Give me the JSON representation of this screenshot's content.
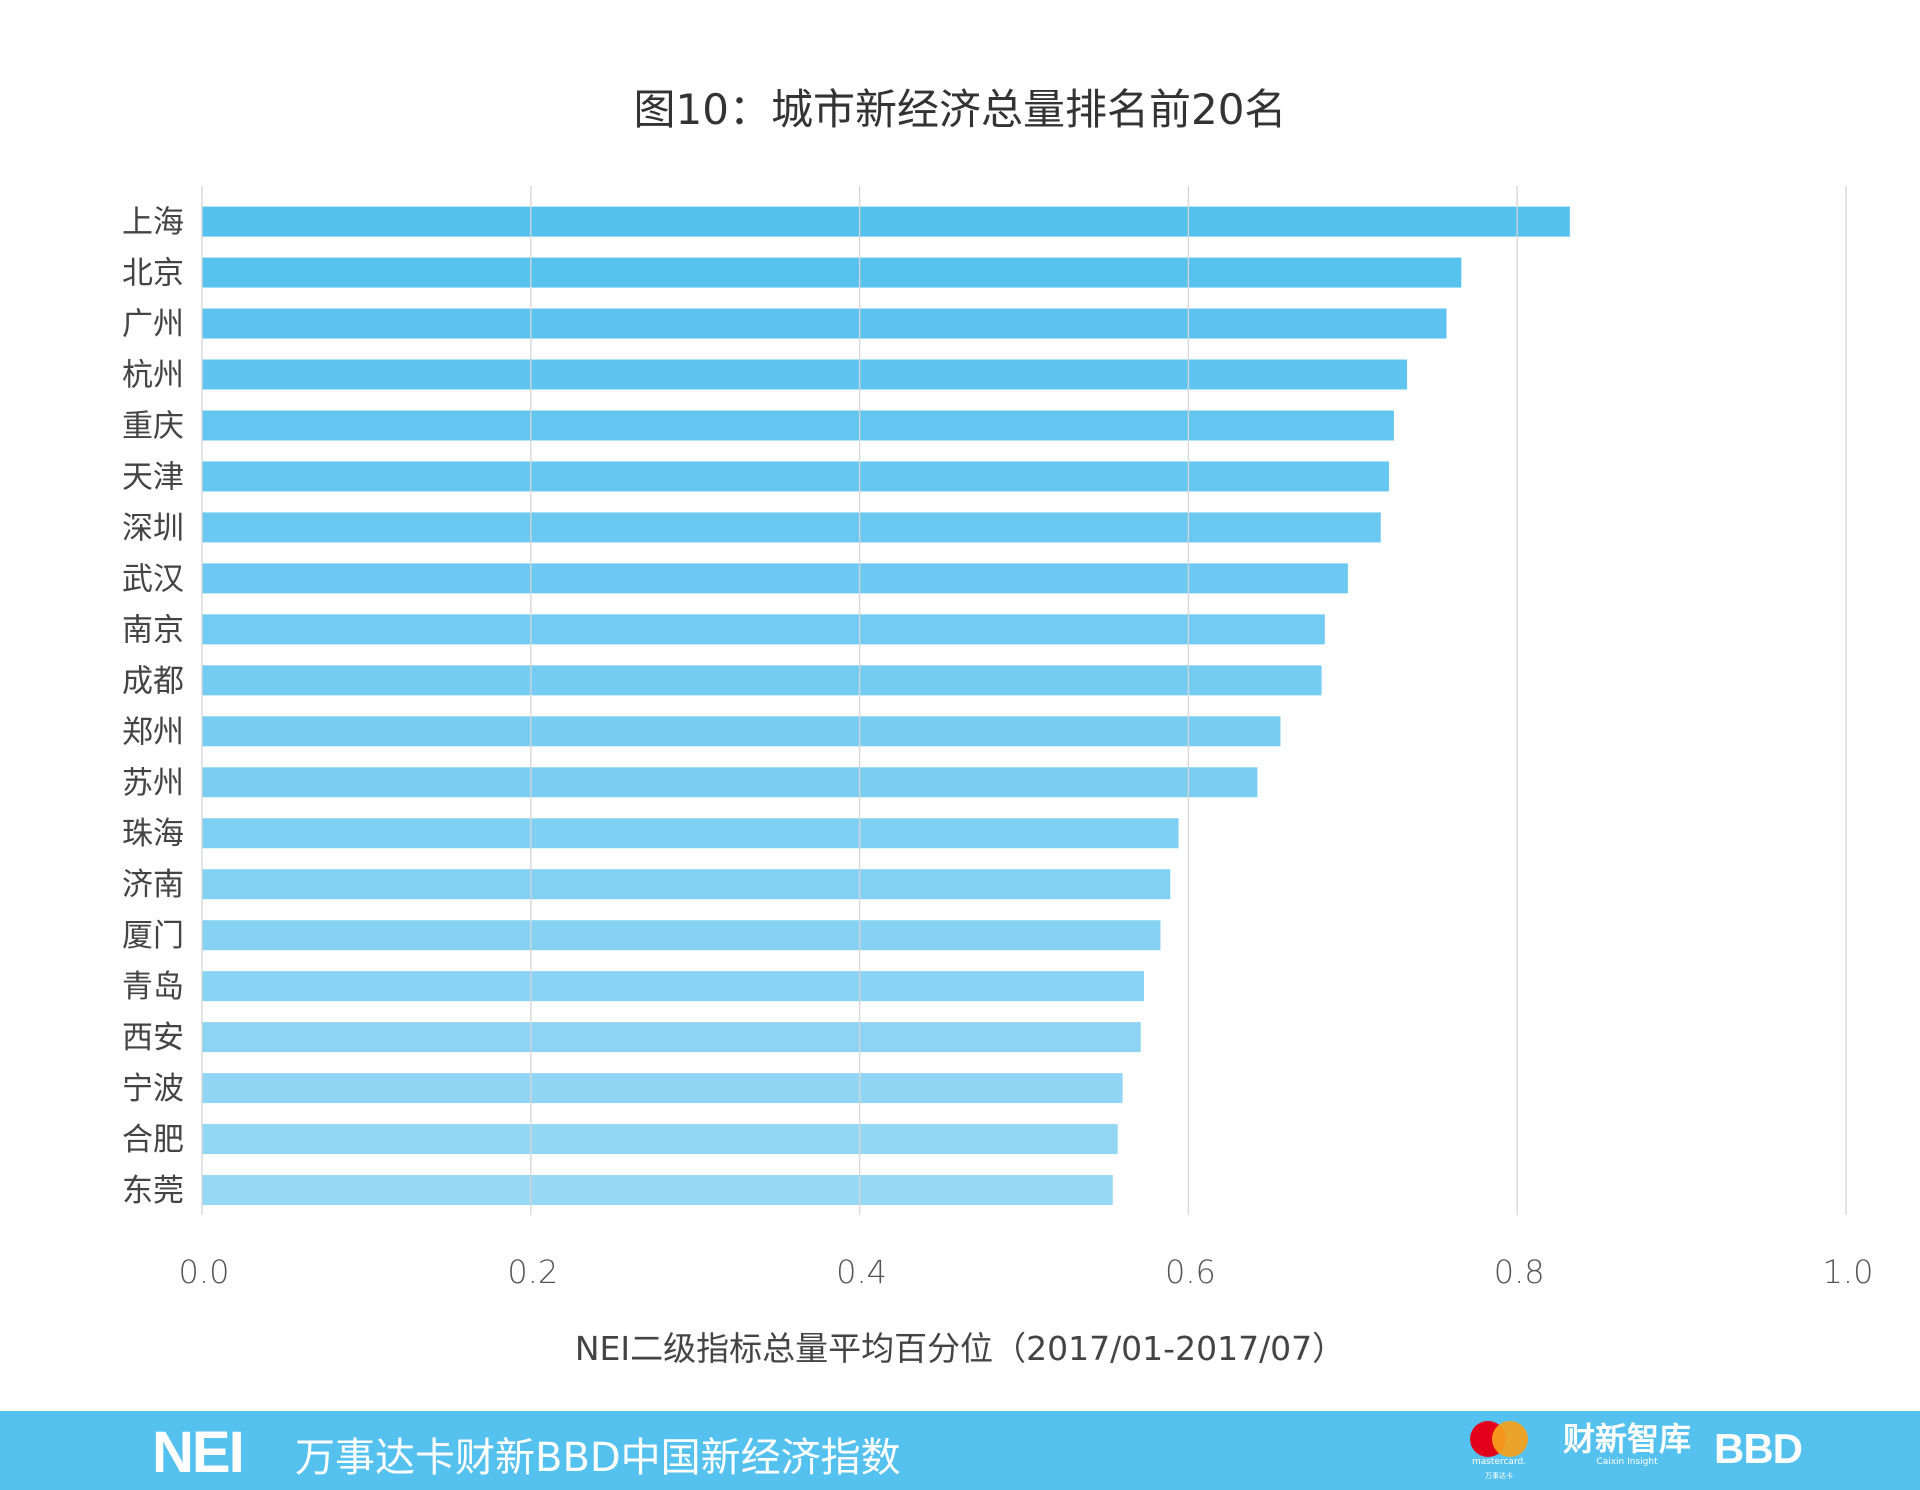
{
  "chart_data": {
    "type": "bar",
    "orientation": "horizontal",
    "title": "图10：城市新经济总量排名前20名",
    "xlabel": "NEI二级指标总量平均百分位（2017/01-2017/07）",
    "ylabel": "",
    "xlim": [
      0,
      1.0
    ],
    "xticks": [
      "0.0",
      "0.2",
      "0.4",
      "0.6",
      "0.8",
      "1.0"
    ],
    "grid": true,
    "categories": [
      "上海",
      "北京",
      "广州",
      "杭州",
      "重庆",
      "天津",
      "深圳",
      "武汉",
      "南京",
      "成都",
      "郑州",
      "苏州",
      "珠海",
      "济南",
      "厦门",
      "青岛",
      "西安",
      "宁波",
      "合肥",
      "东莞"
    ],
    "values": [
      0.832,
      0.766,
      0.757,
      0.733,
      0.725,
      0.722,
      0.717,
      0.697,
      0.683,
      0.681,
      0.656,
      0.642,
      0.594,
      0.589,
      0.583,
      0.573,
      0.571,
      0.56,
      0.557,
      0.554
    ],
    "colors": {
      "top": "#55c1ef",
      "bottom": "#97d8f5",
      "grid": "#d6d6d6"
    }
  },
  "footer": {
    "logo": "NEI",
    "slogan": "万事达卡财新BBD中国新经济指数",
    "mastercard": "mastercard.",
    "mastercard_cn": "万事达卡",
    "caixin": "财新智库",
    "caixin_en": "Caixin Insight",
    "bbd": "BBD",
    "color": "#55c1ef"
  }
}
